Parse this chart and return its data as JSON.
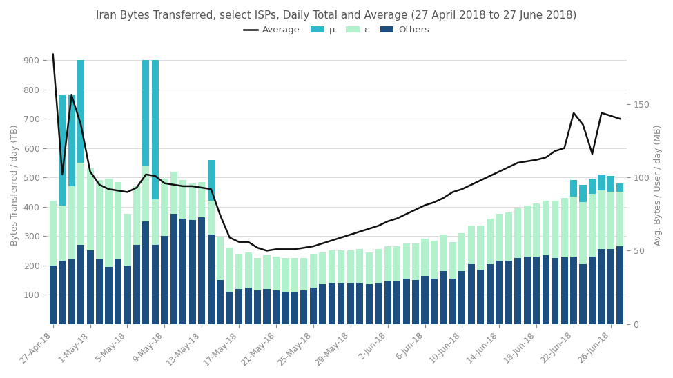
{
  "title": "Iran Bytes Transferred, select ISPs, Daily Total and Average (27 April 2018 to 27 June 2018)",
  "ylabel_left": "Bytes Transferred / day (TB)",
  "ylabel_right": "Avg. Bytes / User / day (MB)",
  "ylim_left": [
    0,
    950
  ],
  "ylim_right": [
    0,
    190
  ],
  "background_color": "#ffffff",
  "grid_color": "#dddddd",
  "bar_colors": {
    "mu": "#2eb8c8",
    "epsilon": "#b3f0cc",
    "others": "#1c4e80"
  },
  "line_color": "#111111",
  "xtick_labels": [
    "27-Apr-18",
    "1-May-18",
    "5-May-18",
    "9-May-18",
    "13-May-18",
    "17-May-18",
    "21-May-18",
    "25-May-18",
    "29-May-18",
    "2-Jun-18",
    "6-Jun-18",
    "10-Jun-18",
    "14-Jun-18",
    "18-Jun-18",
    "22-Jun-18",
    "26-Jun-18"
  ],
  "n_days": 62,
  "others": [
    200,
    215,
    220,
    270,
    250,
    220,
    195,
    220,
    200,
    270,
    350,
    270,
    300,
    375,
    360,
    355,
    365,
    305,
    150,
    110,
    120,
    125,
    115,
    120,
    115,
    110,
    110,
    115,
    125,
    135,
    140,
    140,
    140,
    140,
    135,
    140,
    145,
    145,
    155,
    150,
    165,
    155,
    180,
    155,
    180,
    205,
    185,
    205,
    215,
    215,
    225,
    230,
    230,
    235,
    225,
    230,
    230,
    205,
    230,
    255,
    255,
    265
  ],
  "epsilon": [
    220,
    190,
    250,
    280,
    280,
    270,
    300,
    265,
    175,
    200,
    190,
    155,
    195,
    145,
    130,
    125,
    120,
    115,
    145,
    150,
    120,
    120,
    110,
    115,
    115,
    115,
    115,
    110,
    115,
    110,
    110,
    110,
    110,
    115,
    110,
    115,
    120,
    120,
    120,
    125,
    125,
    130,
    125,
    125,
    130,
    130,
    150,
    155,
    160,
    165,
    170,
    175,
    180,
    185,
    195,
    200,
    205,
    210,
    215,
    200,
    195,
    185
  ],
  "mu": [
    0,
    375,
    310,
    350,
    0,
    0,
    0,
    0,
    0,
    0,
    360,
    475,
    0,
    0,
    0,
    0,
    0,
    140,
    0,
    0,
    0,
    0,
    0,
    0,
    0,
    0,
    0,
    0,
    0,
    0,
    0,
    0,
    0,
    0,
    0,
    0,
    0,
    0,
    0,
    0,
    0,
    0,
    0,
    0,
    0,
    0,
    0,
    0,
    0,
    0,
    0,
    0,
    0,
    0,
    0,
    0,
    55,
    60,
    50,
    55,
    55,
    30
  ],
  "average_line_left": [
    920,
    510,
    780,
    680,
    520,
    475,
    460,
    455,
    450,
    465,
    510,
    505,
    480,
    475,
    470,
    470,
    465,
    460,
    370,
    295,
    280,
    280,
    260,
    250,
    255,
    255,
    255,
    260,
    265,
    275,
    285,
    295,
    305,
    315,
    325,
    335,
    350,
    360,
    375,
    390,
    405,
    415,
    430,
    450,
    460,
    475,
    490,
    505,
    520,
    535,
    550,
    555,
    560,
    568,
    590,
    600,
    720,
    680,
    580,
    720,
    710,
    700
  ]
}
